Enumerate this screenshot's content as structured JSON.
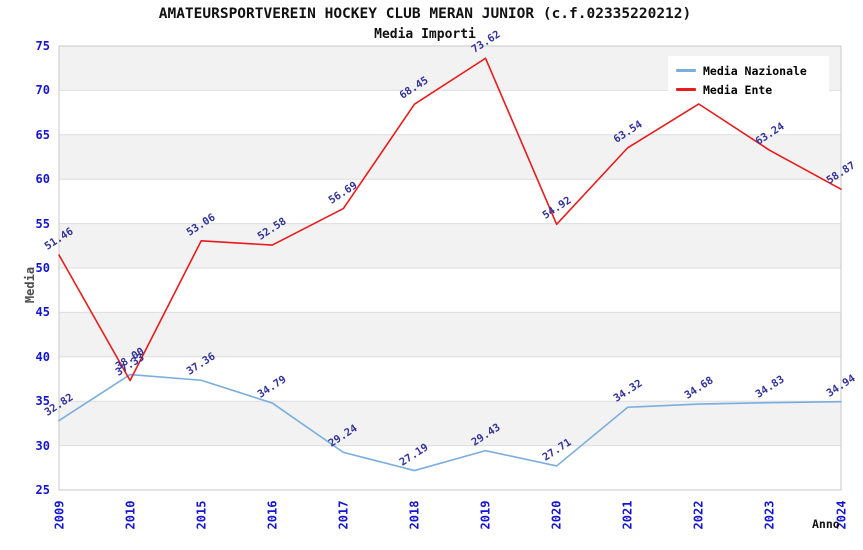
{
  "chart_data": {
    "type": "line",
    "title": "AMATEURSPORTVEREIN HOCKEY CLUB MERAN JUNIOR (c.f.02335220212)",
    "subtitle": "Media Importi",
    "xlabel": "Anno",
    "ylabel": "Media",
    "ylim": [
      25,
      75
    ],
    "yticks": [
      25,
      30,
      35,
      40,
      45,
      50,
      55,
      60,
      65,
      70,
      75
    ],
    "grid": "horizontal bands, alternating gray/white every 5 units (gray: 30-35, 40-45, 50-55, 60-65, 70-75)",
    "legend_position": "top-right, white box overlapping plot",
    "categories": [
      "2009",
      "2010",
      "2015",
      "2016",
      "2017",
      "2018",
      "2019",
      "2020",
      "2021",
      "2022",
      "2023",
      "2024"
    ],
    "series": [
      {
        "name": "Media Nazionale",
        "color": "#7aaede",
        "values": [
          32.82,
          38.0,
          37.36,
          34.79,
          29.24,
          27.19,
          29.43,
          27.71,
          34.32,
          34.68,
          34.83,
          34.94
        ],
        "labels": [
          "32.82",
          "38.00",
          "37.36",
          "34.79",
          "29.24",
          "27.19",
          "29.43",
          "27.71",
          "34.32",
          "34.68",
          "34.83",
          "34.94"
        ]
      },
      {
        "name": "Media Ente",
        "color": "#e81c1c",
        "values": [
          51.46,
          37.33,
          53.06,
          52.58,
          56.69,
          68.45,
          73.62,
          54.92,
          63.54,
          68.47,
          63.24,
          58.87
        ],
        "labels": [
          "51.46",
          "37.33",
          "53.06",
          "52.58",
          "56.69",
          "68.45",
          "73.62",
          "54.92",
          "63.54",
          null,
          "63.24",
          "58.87"
        ],
        "note": "2022 point label is hidden behind the legend in the source image; 68.47 is estimated from the line position"
      }
    ],
    "colors": {
      "axis_tick_text": "#1515cf",
      "data_label_text": "#333399",
      "band_gray": "#f2f2f2",
      "gridline": "#dedede",
      "plot_border": "#c9c9c9",
      "axis_title_y": "#4d4d4d",
      "axis_title_x": "#111111",
      "title_text": "#111111",
      "nazionale_line": "#7aaede",
      "ente_line": "#e81c1c"
    }
  }
}
